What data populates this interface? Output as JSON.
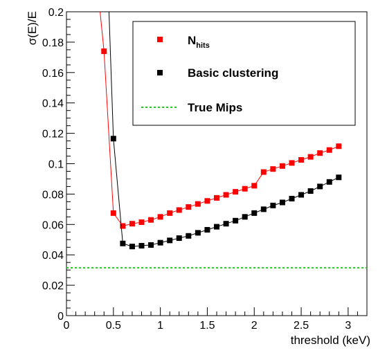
{
  "chart_data": {
    "type": "scatter",
    "xlabel": "threshold (keV)",
    "ylabel": "σ(E)/E",
    "xlim": [
      0,
      3.2
    ],
    "ylim": [
      0,
      0.2
    ],
    "xticks": [
      0,
      0.5,
      1,
      1.5,
      2,
      2.5,
      3
    ],
    "xtick_labels": [
      "0",
      "0.5",
      "1",
      "1.5",
      "2",
      "2.5",
      "3"
    ],
    "yticks": [
      0,
      0.02,
      0.04,
      0.06,
      0.08,
      0.1,
      0.12,
      0.14,
      0.16,
      0.18,
      0.2
    ],
    "ytick_labels": [
      "0",
      "0.02",
      "0.04",
      "0.06",
      "0.08",
      "0.1",
      "0.12",
      "0.14",
      "0.16",
      "0.18",
      "0.2"
    ],
    "grid": false,
    "legend_position": "top-right",
    "legend": {
      "nhits_main": "N",
      "nhits_sub": "hits",
      "basic": "Basic clustering",
      "truemips": "True Mips"
    },
    "series": [
      {
        "key": "nhits",
        "color": "#ff0000",
        "marker": "square",
        "line": "solid",
        "points": [
          [
            0.35,
            0.205
          ],
          [
            0.4,
            0.174
          ],
          [
            0.5,
            0.0675
          ],
          [
            0.6,
            0.059
          ],
          [
            0.7,
            0.0605
          ],
          [
            0.8,
            0.0615
          ],
          [
            0.9,
            0.063
          ],
          [
            1.0,
            0.065
          ],
          [
            1.1,
            0.0675
          ],
          [
            1.2,
            0.0695
          ],
          [
            1.3,
            0.0715
          ],
          [
            1.4,
            0.0735
          ],
          [
            1.5,
            0.0755
          ],
          [
            1.6,
            0.0775
          ],
          [
            1.7,
            0.0795
          ],
          [
            1.8,
            0.0815
          ],
          [
            1.9,
            0.0835
          ],
          [
            2.0,
            0.0855
          ],
          [
            2.1,
            0.0875
          ],
          [
            2.2,
            0.0895
          ],
          [
            2.3,
            0.0915
          ],
          [
            2.4,
            0.0935
          ],
          [
            2.5,
            0.095
          ],
          [
            2.6,
            0.097
          ],
          [
            2.7,
            0.099
          ],
          [
            2.8,
            0.101
          ],
          [
            2.9,
            0.103
          ]
        ],
        "extra_points": [
          [
            2.2,
            0.0965
          ],
          [
            2.3,
            0.0985
          ],
          [
            2.4,
            0.1005
          ],
          [
            2.5,
            0.1025
          ],
          [
            2.6,
            0.1045
          ],
          [
            2.7,
            0.107
          ],
          [
            2.8,
            0.109
          ],
          [
            2.9,
            0.1115
          ]
        ]
      },
      {
        "key": "basic",
        "color": "#000000",
        "marker": "square",
        "line": "solid",
        "points": [
          [
            0.45,
            0.205
          ],
          [
            0.5,
            0.1165
          ],
          [
            0.6,
            0.0475
          ],
          [
            0.7,
            0.0455
          ],
          [
            0.8,
            0.046
          ],
          [
            0.9,
            0.0465
          ],
          [
            1.0,
            0.048
          ],
          [
            1.1,
            0.0495
          ],
          [
            1.2,
            0.051
          ],
          [
            1.3,
            0.0525
          ],
          [
            1.4,
            0.0545
          ],
          [
            1.5,
            0.0565
          ],
          [
            1.6,
            0.0585
          ],
          [
            1.7,
            0.0605
          ],
          [
            1.8,
            0.0625
          ],
          [
            1.9,
            0.065
          ],
          [
            2.0,
            0.0675
          ],
          [
            2.1,
            0.07
          ],
          [
            2.2,
            0.0725
          ],
          [
            2.3,
            0.0745
          ],
          [
            2.4,
            0.077
          ],
          [
            2.5,
            0.0795
          ],
          [
            2.6,
            0.082
          ],
          [
            2.7,
            0.085
          ],
          [
            2.8,
            0.088
          ],
          [
            2.9,
            0.091
          ]
        ]
      }
    ],
    "reference_line": {
      "key": "truemips",
      "color": "#33bb33",
      "style": "dotted",
      "y": 0.0315
    }
  }
}
